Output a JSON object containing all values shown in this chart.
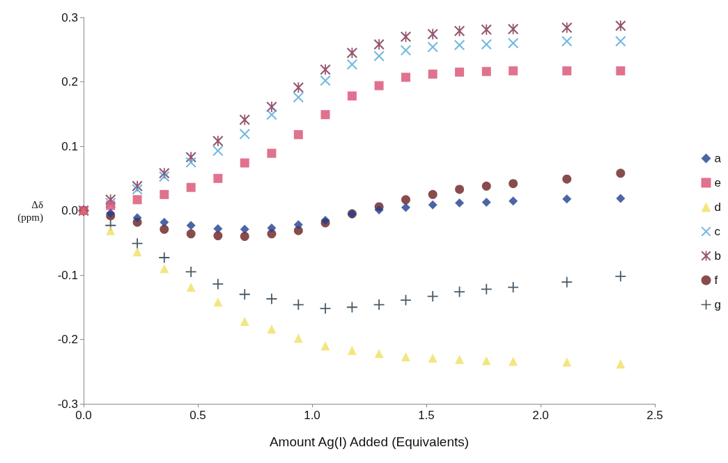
{
  "chart_data": {
    "type": "scatter",
    "xlabel": "Amount Ag(I) Added (Equivalents)",
    "ylabel": "Δδ (ppm)",
    "x": [
      0,
      0.118,
      0.235,
      0.353,
      0.47,
      0.588,
      0.705,
      0.823,
      0.94,
      1.058,
      1.175,
      1.293,
      1.41,
      1.528,
      1.645,
      1.763,
      1.88,
      2.115,
      2.35
    ],
    "xlim": [
      0,
      2.5
    ],
    "xticks": [
      {
        "value": 0,
        "label": "0.0"
      },
      {
        "value": 0.5,
        "label": "0.5"
      },
      {
        "value": 1,
        "label": "1.0"
      },
      {
        "value": 1.5,
        "label": "1.5"
      },
      {
        "value": 2,
        "label": "2.0"
      },
      {
        "value": 2.5,
        "label": "2.5"
      }
    ],
    "ylim": [
      -0.3,
      0.3
    ],
    "yticks": [
      {
        "value": -0.3,
        "label": "-0.3"
      },
      {
        "value": -0.2,
        "label": "-0.2"
      },
      {
        "value": -0.1,
        "label": "-0.1"
      },
      {
        "value": 0,
        "label": "0.0"
      },
      {
        "value": 0.1,
        "label": "0.1"
      },
      {
        "value": 0.2,
        "label": "0.2"
      },
      {
        "value": 0.3,
        "label": "0.3"
      }
    ],
    "grid": false,
    "legend": "right",
    "series": [
      {
        "name": "a",
        "color": "#1f3f8f",
        "marker": "diamond",
        "values": [
          null,
          -0.004,
          -0.011,
          -0.018,
          -0.023,
          -0.028,
          -0.029,
          -0.027,
          -0.022,
          -0.015,
          -0.005,
          0.001,
          0.005,
          0.009,
          0.012,
          0.013,
          0.015,
          0.018,
          0.019
        ]
      },
      {
        "name": "e",
        "color": "#d94f70",
        "marker": "square",
        "values": [
          0,
          0.008,
          0.017,
          0.025,
          0.036,
          0.05,
          0.074,
          0.089,
          0.118,
          0.149,
          0.178,
          0.194,
          0.207,
          0.212,
          0.215,
          0.216,
          0.217,
          0.217,
          0.217
        ]
      },
      {
        "name": "d",
        "color": "#f0e060",
        "marker": "triangle",
        "values": [
          0,
          -0.031,
          -0.064,
          -0.09,
          -0.119,
          -0.142,
          -0.172,
          -0.184,
          -0.198,
          -0.21,
          -0.217,
          -0.222,
          -0.227,
          -0.229,
          -0.231,
          -0.233,
          -0.234,
          -0.235,
          -0.238
        ]
      },
      {
        "name": "c",
        "color": "#4fa8d8",
        "marker": "x",
        "values": [
          0,
          0.012,
          0.033,
          0.053,
          0.075,
          0.093,
          0.119,
          0.149,
          0.176,
          0.202,
          0.227,
          0.24,
          0.249,
          0.254,
          0.257,
          0.258,
          0.26,
          0.263,
          0.263
        ]
      },
      {
        "name": "b",
        "color": "#7a2a4a",
        "marker": "star",
        "values": [
          0,
          0.017,
          0.038,
          0.058,
          0.083,
          0.108,
          0.141,
          0.161,
          0.191,
          0.219,
          0.245,
          0.258,
          0.27,
          0.274,
          0.279,
          0.281,
          0.282,
          0.284,
          0.287
        ]
      },
      {
        "name": "f",
        "color": "#6a1f1f",
        "marker": "circle",
        "values": [
          0,
          -0.008,
          -0.018,
          -0.029,
          -0.036,
          -0.039,
          -0.04,
          -0.036,
          -0.031,
          -0.019,
          -0.005,
          0.006,
          0.017,
          0.025,
          0.033,
          0.038,
          0.042,
          0.049,
          0.058
        ]
      },
      {
        "name": "g",
        "color": "#1a3040",
        "marker": "cross",
        "values": [
          0,
          -0.023,
          -0.051,
          -0.073,
          -0.095,
          -0.114,
          -0.13,
          -0.137,
          -0.146,
          -0.152,
          -0.15,
          -0.146,
          -0.139,
          -0.133,
          -0.126,
          -0.122,
          -0.119,
          -0.111,
          -0.102
        ]
      }
    ]
  }
}
